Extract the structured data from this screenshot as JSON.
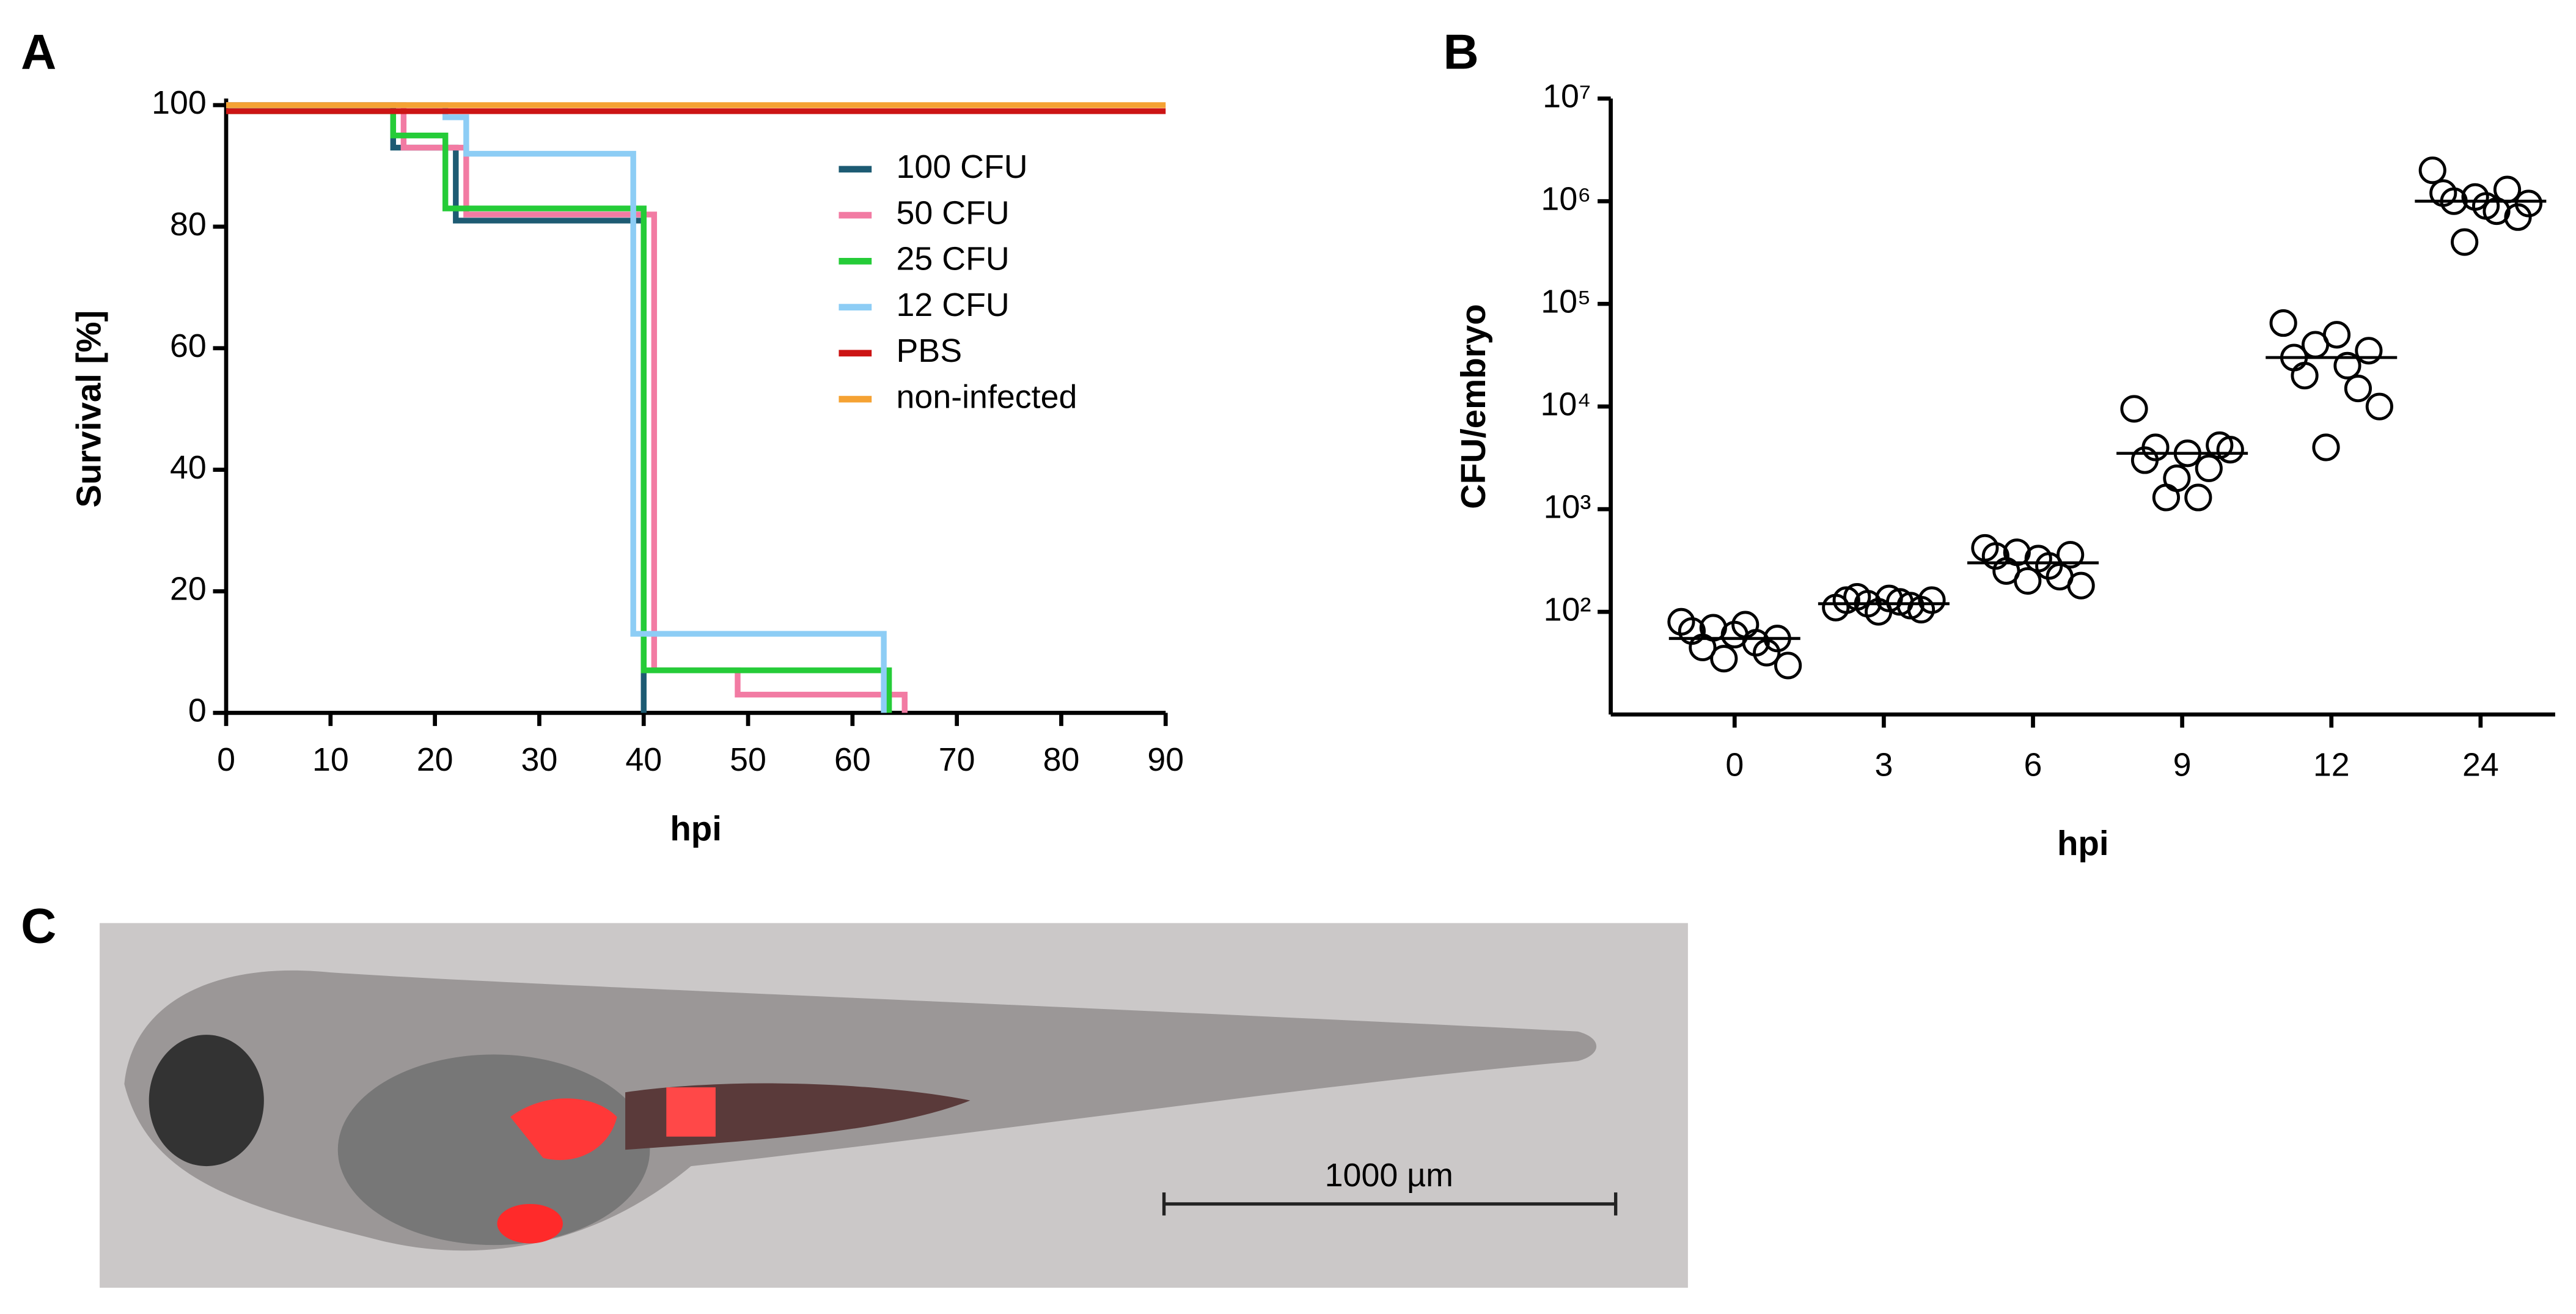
{
  "chart_data": [
    {
      "type": "step",
      "panel": "A",
      "xlabel": "hpi",
      "ylabel": "Survival [%]",
      "xlim": [
        0,
        90
      ],
      "xticks": [
        0,
        10,
        20,
        30,
        40,
        50,
        60,
        70,
        80,
        90
      ],
      "ylim": [
        0,
        100
      ],
      "yticks": [
        0,
        20,
        40,
        60,
        80,
        100
      ],
      "series": [
        {
          "name": "100 CFU",
          "color": "#1d5b73",
          "x": [
            0,
            16,
            22,
            40
          ],
          "values": [
            100,
            93,
            81,
            0
          ]
        },
        {
          "name": "50 CFU",
          "color": "#f27ba3",
          "x": [
            0,
            17,
            23,
            41,
            49,
            65
          ],
          "values": [
            100,
            93,
            82,
            7,
            3,
            0
          ]
        },
        {
          "name": "25 CFU",
          "color": "#25cc38",
          "x": [
            0,
            16,
            21,
            40,
            63.5
          ],
          "values": [
            99,
            95,
            83,
            7,
            0
          ]
        },
        {
          "name": "12 CFU",
          "color": "#8dcdf5",
          "x": [
            0,
            21,
            23,
            39,
            63
          ],
          "values": [
            100,
            98,
            92,
            13,
            0
          ]
        },
        {
          "name": "PBS",
          "color": "#cc1414",
          "x": [
            0,
            90
          ],
          "values": [
            99,
            99
          ]
        },
        {
          "name": "non-infected",
          "color": "#f5a233",
          "x": [
            0,
            90
          ],
          "values": [
            100,
            100
          ]
        }
      ]
    },
    {
      "type": "scatter",
      "panel": "B",
      "xlabel": "hpi",
      "ylabel": "CFU/embryo",
      "log": true,
      "categories": [
        "0",
        "3",
        "6",
        "9",
        "12",
        "24"
      ],
      "ylim": [
        10,
        10000000
      ],
      "yticks": [
        {
          "value": 100,
          "label": "10²"
        },
        {
          "value": 1000,
          "label": "10³"
        },
        {
          "value": 10000,
          "label": "10⁴"
        },
        {
          "value": 100000,
          "label": "10⁵"
        },
        {
          "value": 1000000,
          "label": "10⁶"
        },
        {
          "value": 10000000,
          "label": "10⁷"
        }
      ],
      "points": [
        [
          80,
          65,
          45,
          70,
          35,
          60,
          75,
          50,
          40,
          55,
          30
        ],
        [
          110,
          130,
          140,
          120,
          100,
          135,
          125,
          115,
          105,
          130
        ],
        [
          420,
          350,
          250,
          380,
          200,
          330,
          280,
          220,
          360,
          180
        ],
        [
          9500,
          3000,
          4000,
          1300,
          2000,
          3500,
          1300,
          2500,
          4200,
          3800
        ],
        [
          65000,
          30000,
          20000,
          40000,
          4000,
          50000,
          25000,
          15000,
          35000,
          10000
        ],
        [
          2000000,
          1200000,
          1000000,
          400000,
          1100000,
          900000,
          800000,
          1300000,
          700000,
          950000
        ]
      ],
      "medians": [
        55,
        120,
        300,
        3500,
        30000,
        1000000
      ]
    }
  ],
  "image": {
    "panel": "C",
    "scale_bar": "1000 µm"
  }
}
